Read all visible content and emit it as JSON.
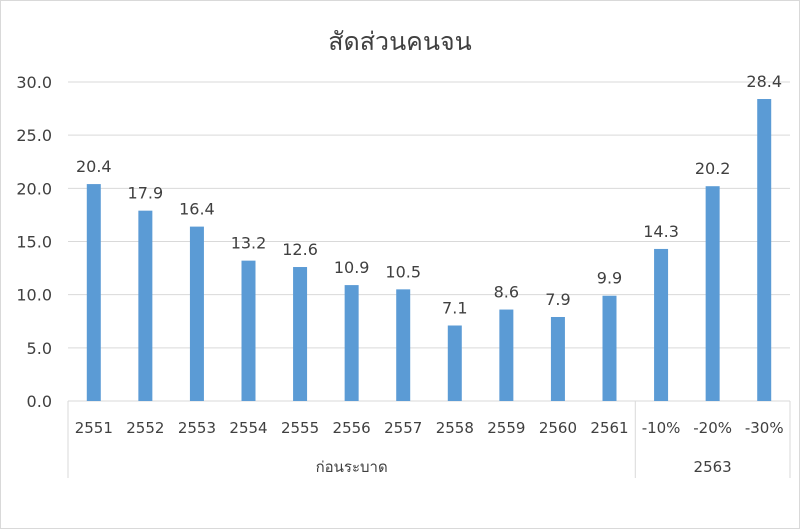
{
  "chart_data": {
    "type": "bar",
    "title": "สัดส่วนคนจน",
    "categories": [
      "2551",
      "2552",
      "2553",
      "2554",
      "2555",
      "2556",
      "2557",
      "2558",
      "2559",
      "2560",
      "2561",
      "-10%",
      "-20%",
      "-30%"
    ],
    "groups": [
      {
        "label": "ก่อนระบาด",
        "count": 11
      },
      {
        "label": "2563",
        "count": 3
      }
    ],
    "values": [
      20.4,
      17.9,
      16.4,
      13.2,
      12.6,
      10.9,
      10.5,
      7.1,
      8.6,
      7.9,
      9.9,
      14.3,
      20.2,
      28.4
    ],
    "data_labels": [
      "20.4",
      "17.9",
      "16.4",
      "13.2",
      "12.6",
      "10.9",
      "10.5",
      "7.1",
      "8.6",
      "7.9",
      "9.9",
      "14.3",
      "20.2",
      "28.4"
    ],
    "yticks": [
      "0.0",
      "5.0",
      "10.0",
      "15.0",
      "20.0",
      "25.0",
      "30.0"
    ],
    "ylim": [
      0,
      30
    ],
    "grid": true,
    "legend": "none",
    "bar_color": "#5B9BD5"
  }
}
